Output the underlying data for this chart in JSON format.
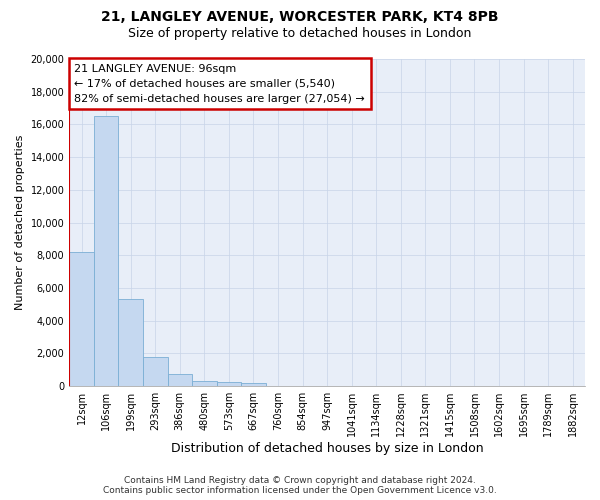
{
  "title1": "21, LANGLEY AVENUE, WORCESTER PARK, KT4 8PB",
  "title2": "Size of property relative to detached houses in London",
  "xlabel": "Distribution of detached houses by size in London",
  "ylabel": "Number of detached properties",
  "categories": [
    "12sqm",
    "106sqm",
    "199sqm",
    "293sqm",
    "386sqm",
    "480sqm",
    "573sqm",
    "667sqm",
    "760sqm",
    "854sqm",
    "947sqm",
    "1041sqm",
    "1134sqm",
    "1228sqm",
    "1321sqm",
    "1415sqm",
    "1508sqm",
    "1602sqm",
    "1695sqm",
    "1789sqm",
    "1882sqm"
  ],
  "values": [
    8200,
    16500,
    5300,
    1750,
    750,
    320,
    270,
    200,
    0,
    0,
    0,
    0,
    0,
    0,
    0,
    0,
    0,
    0,
    0,
    0,
    0
  ],
  "bar_color": "#c5d8f0",
  "bar_edge_color": "#7aaed4",
  "vline_color": "#cc0000",
  "annotation_box_color": "#cc0000",
  "annotation_line1": "21 LANGLEY AVENUE: 96sqm",
  "annotation_line2": "← 17% of detached houses are smaller (5,540)",
  "annotation_line3": "82% of semi-detached houses are larger (27,054) →",
  "ylim": [
    0,
    20000
  ],
  "yticks": [
    0,
    2000,
    4000,
    6000,
    8000,
    10000,
    12000,
    14000,
    16000,
    18000,
    20000
  ],
  "grid_color": "#c8d4e8",
  "bg_color": "#e8eef8",
  "footer_line1": "Contains HM Land Registry data © Crown copyright and database right 2024.",
  "footer_line2": "Contains public sector information licensed under the Open Government Licence v3.0.",
  "title1_fontsize": 10,
  "title2_fontsize": 9,
  "xlabel_fontsize": 9,
  "ylabel_fontsize": 8,
  "tick_fontsize": 7,
  "footer_fontsize": 6.5
}
